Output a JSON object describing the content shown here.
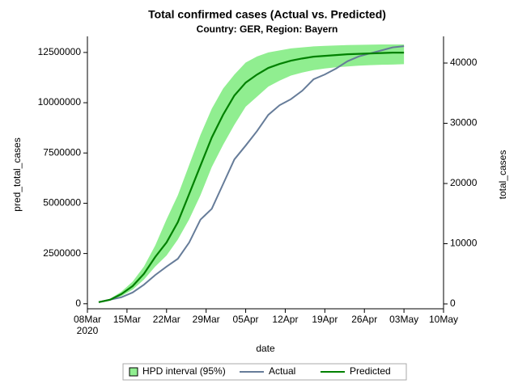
{
  "chart_data": {
    "type": "line",
    "title": "Total confirmed cases (Actual vs. Predicted)",
    "subtitle": "Country: GER, Region: Bayern",
    "x_label": "date",
    "y_label": "pred_total_cases",
    "y2_label": "total_cases",
    "x": [
      "2020-03-10",
      "2020-03-12",
      "2020-03-14",
      "2020-03-16",
      "2020-03-18",
      "2020-03-20",
      "2020-03-22",
      "2020-03-24",
      "2020-03-26",
      "2020-03-28",
      "2020-03-30",
      "2020-04-01",
      "2020-04-03",
      "2020-04-05",
      "2020-04-07",
      "2020-04-09",
      "2020-04-11",
      "2020-04-13",
      "2020-04-15",
      "2020-04-17",
      "2020-04-19",
      "2020-04-21",
      "2020-04-23",
      "2020-04-25",
      "2020-04-27",
      "2020-04-29",
      "2020-05-01",
      "2020-05-03"
    ],
    "series": [
      {
        "name": "HPD interval (95%)",
        "color": "#90ee90",
        "upper": [
          100000,
          250000,
          600000,
          1100000,
          1850000,
          2900000,
          4200000,
          5400000,
          6900000,
          8400000,
          9700000,
          10700000,
          11400000,
          12000000,
          12300000,
          12500000,
          12600000,
          12700000,
          12750000,
          12800000,
          12830000,
          12850000,
          12870000,
          12880000,
          12890000,
          12900000,
          12900000,
          12900000
        ],
        "lower": [
          60000,
          160000,
          380000,
          700000,
          1200000,
          1850000,
          2400000,
          3200000,
          4200000,
          5400000,
          6800000,
          7900000,
          8900000,
          9800000,
          10300000,
          10800000,
          11100000,
          11350000,
          11500000,
          11620000,
          11700000,
          11760000,
          11800000,
          11840000,
          11870000,
          11890000,
          11900000,
          11920000
        ]
      },
      {
        "name": "Actual",
        "color": "#667c99",
        "axis": "y2",
        "values": [
          300,
          700,
          1100,
          1900,
          3200,
          4800,
          6200,
          7500,
          10200,
          14000,
          15800,
          19900,
          24000,
          26300,
          28700,
          31400,
          33000,
          34000,
          35400,
          37300,
          38100,
          39100,
          40300,
          41100,
          41600,
          42100,
          42600,
          42800
        ]
      },
      {
        "name": "Predicted",
        "color": "#008000",
        "values": [
          80000,
          200000,
          480000,
          880000,
          1490000,
          2330000,
          3050000,
          4060000,
          5460000,
          6870000,
          8270000,
          9400000,
          10360000,
          11000000,
          11400000,
          11730000,
          11930000,
          12090000,
          12200000,
          12290000,
          12330000,
          12370000,
          12410000,
          12430000,
          12450000,
          12470000,
          12490000,
          12490000
        ]
      }
    ],
    "xlim": [
      "2020-03-08",
      "2020-05-10"
    ],
    "xticks": [
      {
        "value": "2020-03-08",
        "label": "08Mar",
        "year_label": "2020"
      },
      {
        "value": "2020-03-15",
        "label": "15Mar"
      },
      {
        "value": "2020-03-22",
        "label": "22Mar"
      },
      {
        "value": "2020-03-29",
        "label": "29Mar"
      },
      {
        "value": "2020-04-05",
        "label": "05Apr"
      },
      {
        "value": "2020-04-12",
        "label": "12Apr"
      },
      {
        "value": "2020-04-19",
        "label": "19Apr"
      },
      {
        "value": "2020-04-26",
        "label": "26Apr"
      },
      {
        "value": "2020-05-03",
        "label": "03May"
      },
      {
        "value": "2020-05-10",
        "label": "10May"
      }
    ],
    "ylim": [
      -250000,
      13300000
    ],
    "yticks": [
      0,
      2500000,
      5000000,
      7500000,
      10000000,
      12500000
    ],
    "y2lim": [
      -805,
      44430
    ],
    "y2ticks": [
      0,
      10000,
      20000,
      30000,
      40000
    ],
    "grid": false,
    "legend": "bottom"
  }
}
